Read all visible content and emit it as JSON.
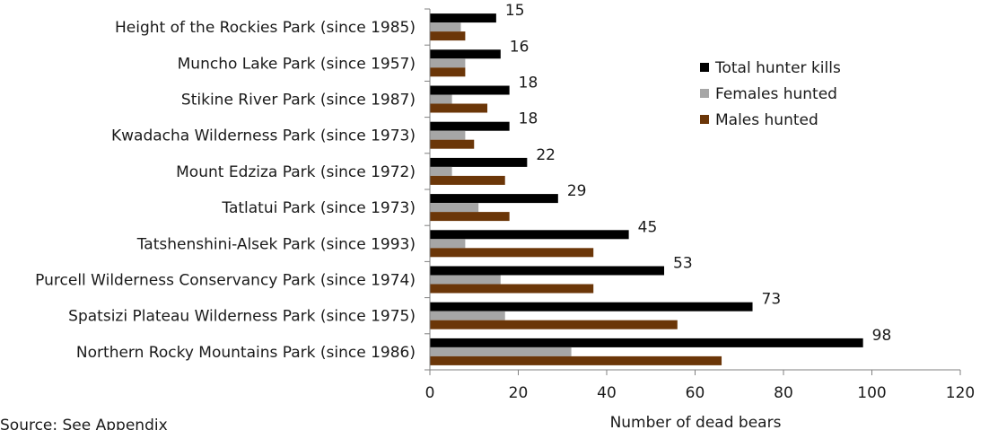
{
  "chart_data": {
    "type": "bar",
    "orientation": "horizontal",
    "title": "",
    "xlabel": "Number of dead bears",
    "ylabel": "",
    "xlim": [
      0,
      120
    ],
    "xticks": [
      0,
      20,
      40,
      60,
      80,
      100,
      120
    ],
    "categories": [
      "Height of the Rockies Park (since 1985)",
      "Muncho Lake Park (since 1957)",
      "Stikine River Park (since 1987)",
      "Kwadacha Wilderness Park (since 1973)",
      "Mount Edziza Park (since 1972)",
      "Tatlatui Park (since 1973)",
      "Tatshenshini-Alsek Park (since 1993)",
      "Purcell Wilderness Conservancy Park (since 1974)",
      "Spatsizi Plateau Wilderness Park (since 1975)",
      "Northern Rocky Mountains Park (since 1986)"
    ],
    "series": [
      {
        "name": "Total hunter kills",
        "color": "#000000",
        "values": [
          15,
          16,
          18,
          18,
          22,
          29,
          45,
          53,
          73,
          98
        ],
        "labeled": true
      },
      {
        "name": "Females hunted",
        "color": "#a6a6a6",
        "values": [
          7,
          8,
          5,
          8,
          5,
          11,
          8,
          16,
          17,
          32
        ],
        "labeled": false
      },
      {
        "name": "Males hunted",
        "color": "#6b3608",
        "values": [
          8,
          8,
          13,
          10,
          17,
          18,
          37,
          37,
          56,
          66
        ],
        "labeled": false
      }
    ],
    "legend": "top-right",
    "grid": false
  },
  "source_note": "Source: See Appendix"
}
